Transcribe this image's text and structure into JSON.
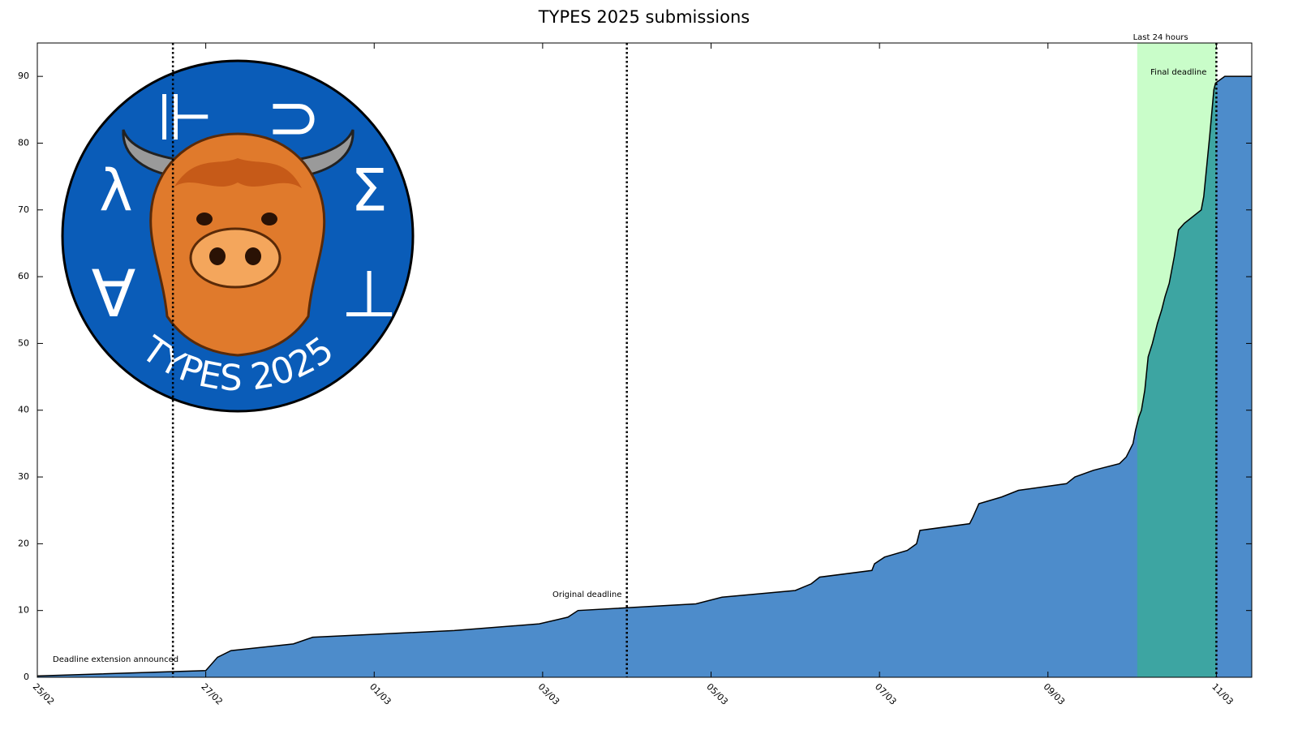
{
  "chart_data": {
    "type": "area",
    "title": "TYPES 2025 submissions",
    "x": [
      0,
      2.0,
      2.14,
      2.3,
      3.04,
      3.27,
      4.95,
      5.96,
      6.3,
      6.42,
      7.82,
      8.13,
      9.0,
      9.19,
      9.29,
      9.91,
      9.94,
      10.06,
      10.33,
      10.44,
      10.48,
      11.07,
      11.11,
      11.18,
      11.45,
      11.65,
      12.22,
      12.32,
      12.54,
      12.85,
      12.93,
      13.01,
      13.04,
      13.08,
      13.11,
      13.15,
      13.19,
      13.24,
      13.3,
      13.35,
      13.39,
      13.44,
      13.5,
      13.55,
      13.62,
      13.82,
      13.85,
      13.92,
      13.97,
      13.99,
      14.1,
      14.42
    ],
    "values": [
      0.2,
      1,
      3,
      4,
      5,
      6,
      7,
      8,
      9,
      10,
      11,
      12,
      13,
      14,
      15,
      16,
      17,
      18,
      19,
      20,
      22,
      23,
      24,
      26,
      27,
      28,
      29,
      30,
      31,
      32,
      33,
      35,
      37,
      39,
      40,
      43,
      48,
      50,
      53,
      55,
      57,
      59,
      63,
      67,
      68,
      70,
      72,
      81,
      88,
      89,
      90,
      90
    ],
    "color": "#4d8ccb",
    "xlim": [
      0,
      14.42
    ],
    "xticks": [
      {
        "value": 0,
        "label": "25/02"
      },
      {
        "value": 2,
        "label": "27/02"
      },
      {
        "value": 4,
        "label": "01/03"
      },
      {
        "value": 6,
        "label": "03/03"
      },
      {
        "value": 8,
        "label": "05/03"
      },
      {
        "value": 10,
        "label": "07/03"
      },
      {
        "value": 12,
        "label": "09/03"
      },
      {
        "value": 14,
        "label": "11/03"
      }
    ],
    "ylim": [
      0,
      95
    ],
    "yticks": [
      0,
      10,
      20,
      30,
      40,
      50,
      60,
      70,
      80,
      90
    ],
    "grid": false,
    "vlines": [
      {
        "x": 1.61,
        "label": "Deadline extension announced"
      },
      {
        "x": 7.0,
        "label": "Original deadline"
      },
      {
        "x": 14.0,
        "label": "Final deadline"
      }
    ],
    "region": {
      "start": 13.06,
      "end": 14.0,
      "label": "Last 24 hours",
      "color": "#c9fdc9",
      "overlap_color": "#3da5a2"
    }
  },
  "logo": {
    "text": "TYPES 2025",
    "symbols": [
      "⊩",
      "⊃",
      "λ",
      "Σ",
      "∀",
      "⊥"
    ]
  }
}
